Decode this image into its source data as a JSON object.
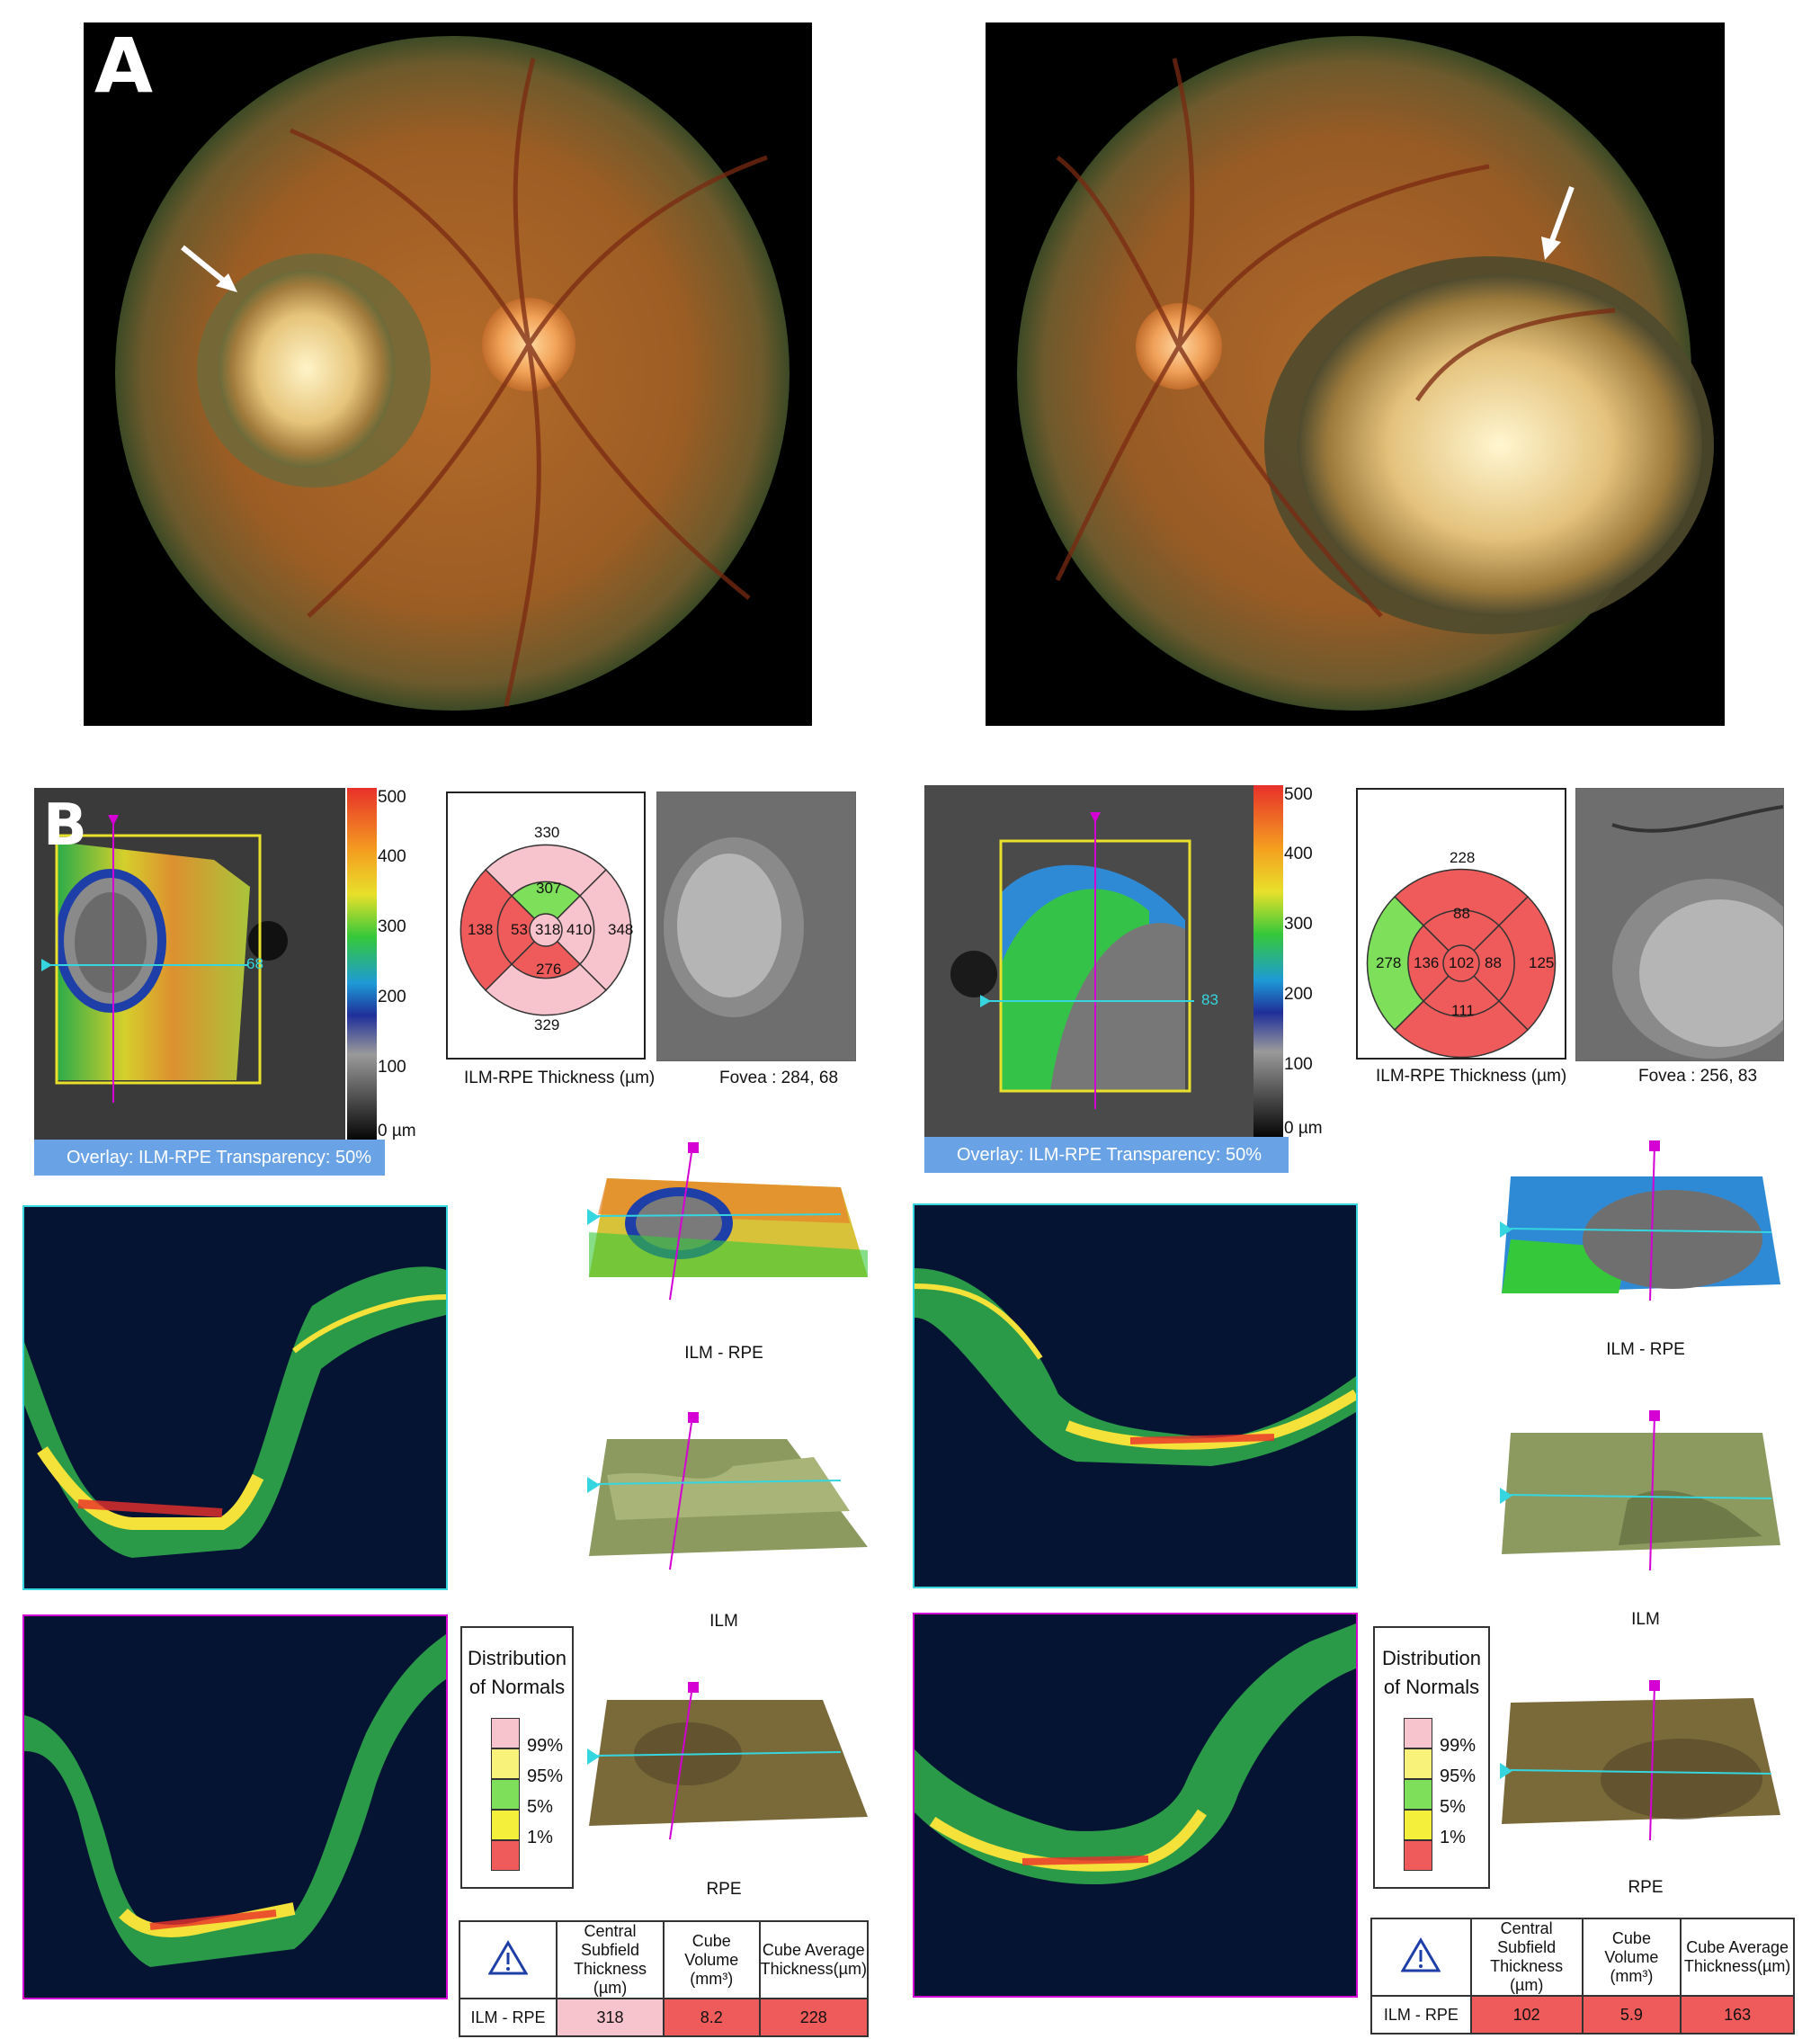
{
  "panels": {
    "a_label": "A",
    "b_label": "B"
  },
  "left": {
    "overlay_label": "Overlay: ILM-RPE Transparency: 50%",
    "scale_ticks": [
      "500",
      "400",
      "300",
      "200",
      "100",
      "0 µm"
    ],
    "scan_line_number": "68",
    "etdrs": {
      "outer_superior": "330",
      "outer_nasal": "348",
      "outer_inferior": "329",
      "outer_temporal": "138",
      "inner_superior": "307",
      "inner_nasal": "410",
      "inner_inferior": "276",
      "inner_temporal": "53",
      "center": "318",
      "caption": "ILM-RPE Thickness (µm)"
    },
    "fovea_caption": "Fovea :  284, 68",
    "surfaces": [
      "ILM - RPE",
      "ILM",
      "RPE"
    ],
    "legend": {
      "title_line1": "Distribution",
      "title_line2": "of Normals",
      "levels": [
        "99%",
        "95%",
        "5%",
        "1%"
      ]
    },
    "stats": {
      "headers": [
        "Central Subfield Thickness (µm)",
        "Cube Volume (mm³)",
        "Cube Average Thickness(µm)"
      ],
      "row_label": "ILM - RPE",
      "values": [
        "318",
        "8.2",
        "228"
      ]
    }
  },
  "right": {
    "overlay_label": "Overlay: ILM-RPE Transparency: 50%",
    "scale_ticks": [
      "500",
      "400",
      "300",
      "200",
      "100",
      "0 µm"
    ],
    "scan_line_number": "83",
    "etdrs": {
      "outer_superior": "228",
      "outer_nasal": "125",
      "outer_temporal": "278",
      "inner_superior": "88",
      "inner_nasal": "88",
      "inner_inferior": "111",
      "inner_temporal": "136",
      "center": "102",
      "caption": "ILM-RPE Thickness (µm)"
    },
    "fovea_caption": "Fovea :  256, 83",
    "surfaces": [
      "ILM - RPE",
      "ILM",
      "RPE"
    ],
    "legend": {
      "title_line1": "Distribution",
      "title_line2": "of Normals",
      "levels": [
        "99%",
        "95%",
        "5%",
        "1%"
      ]
    },
    "stats": {
      "headers": [
        "Central Subfield Thickness (µm)",
        "Cube Volume (mm³)",
        "Cube Average Thickness(µm)"
      ],
      "row_label": "ILM - RPE",
      "values": [
        "102",
        "5.9",
        "163"
      ]
    }
  },
  "colors": {
    "normal_99": "#f7c3cc",
    "normal_95": "#f9f27a",
    "normal_5": "#7ee05a",
    "normal_1": "#f4ef3a",
    "abnormal": "#ef5b5b",
    "overlay_bar": "#6aa2e6",
    "scan_line": "#35d6e0",
    "scan_marker": "#d400d4"
  }
}
